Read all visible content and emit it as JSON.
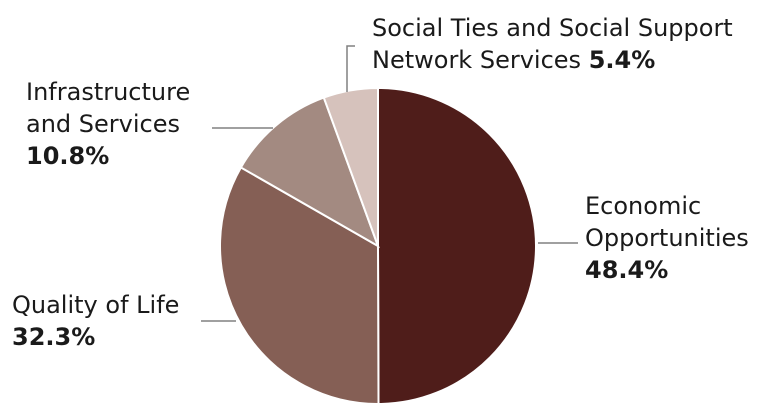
{
  "chart_data": {
    "type": "pie",
    "title": "",
    "start_angle_deg": 0,
    "direction": "clockwise",
    "slices": [
      {
        "label": "Economic Opportunities",
        "value": 48.4,
        "value_label": "48.4%",
        "color": "#4f1d1a"
      },
      {
        "label": "Quality of Life",
        "value": 32.3,
        "value_label": "32.3%",
        "color": "#855f55"
      },
      {
        "label": "Infrastructure and Services",
        "value": 10.8,
        "value_label": "10.8%",
        "color": "#a38a81"
      },
      {
        "label": "Social Ties and Social Support Network Services",
        "value": 5.4,
        "value_label": "5.4%",
        "color": "#d6c2bc"
      }
    ]
  },
  "labels": {
    "economic": {
      "line1": "Economic",
      "line2": "Opportunities",
      "pct": "48.4%"
    },
    "quality": {
      "line1": "Quality of Life",
      "pct": "32.3%"
    },
    "infra": {
      "line1": "Infrastructure",
      "line2": "and Services",
      "pct": "10.8%"
    },
    "social": {
      "line1": "Social Ties and Social Support",
      "line2": "Network Services",
      "pct": "5.4%"
    }
  }
}
